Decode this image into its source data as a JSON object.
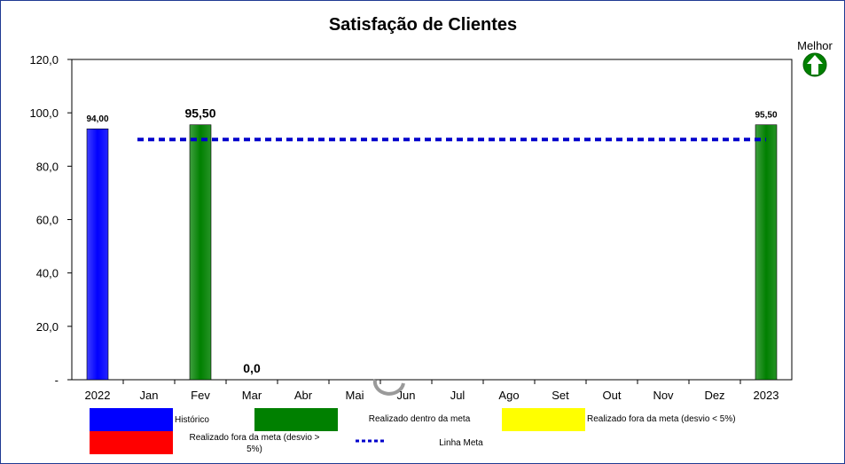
{
  "chart_data": {
    "type": "bar",
    "title": "Satisfação de Clientes",
    "categories": [
      "2022",
      "Jan",
      "Fev",
      "Mar",
      "Abr",
      "Mai",
      "Jun",
      "Jul",
      "Ago",
      "Set",
      "Out",
      "Nov",
      "Dez",
      "2023"
    ],
    "series": [
      {
        "legend_ref": 0,
        "color": "#0000ff",
        "points": [
          {
            "category": "2022",
            "value": 94.0,
            "label": "94,00"
          }
        ]
      },
      {
        "legend_ref": 1,
        "color": "#008000",
        "points": [
          {
            "category": "Fev",
            "value": 95.5,
            "label": "95,50"
          },
          {
            "category": "2023",
            "value": 95.5,
            "label": "95,50"
          }
        ]
      },
      {
        "legend_ref": 2,
        "color": "#ffff00",
        "points": []
      },
      {
        "legend_ref": 3,
        "color": "#ff0000",
        "points": [
          {
            "category": "Mar",
            "value": 0.0,
            "label": "0,0"
          }
        ]
      }
    ],
    "meta_line": {
      "legend_ref": 4,
      "value": 90,
      "color": "#0000cc"
    },
    "ylim": [
      0,
      120
    ],
    "yticks": [
      {
        "value": 0,
        "label": "-"
      },
      {
        "value": 20,
        "label": "20,0"
      },
      {
        "value": 40,
        "label": "40,0"
      },
      {
        "value": 60,
        "label": "60,0"
      },
      {
        "value": 80,
        "label": "80,0"
      },
      {
        "value": 100,
        "label": "100,0"
      },
      {
        "value": 120,
        "label": "120,0"
      }
    ],
    "grid": false,
    "legend_position": "bottom",
    "legend": [
      {
        "label": "Histórico",
        "color": "#0000ff",
        "kind": "box"
      },
      {
        "label": "Realizado dentro da meta",
        "color": "#008000",
        "kind": "box"
      },
      {
        "label": "Realizado fora da meta (desvio < 5%)",
        "color": "#ffff00",
        "kind": "box"
      },
      {
        "label": "Realizado fora da meta (desvio > 5%)",
        "color": "#ff0000",
        "kind": "box"
      },
      {
        "label": "Linha Meta",
        "color": "#0000cc",
        "kind": "dashed-line"
      }
    ]
  },
  "indicator": {
    "label": "Melhor",
    "icon": "up-arrow-icon",
    "color": "#008000"
  }
}
